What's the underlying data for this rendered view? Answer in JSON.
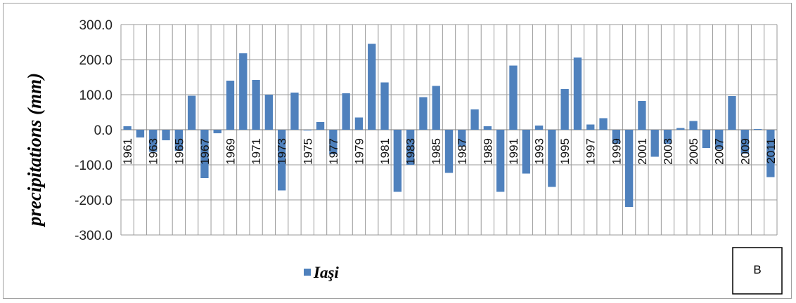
{
  "chart_data": {
    "type": "bar",
    "ylabel": "precipitations (mm)",
    "ylim": [
      -300,
      300
    ],
    "y_ticks": [
      "300.0",
      "200.0",
      "100.0",
      "0.0",
      "-100.0",
      "-200.0",
      "-300.0"
    ],
    "grid": true,
    "legend_position": "bottom-left",
    "bar_color": "#4f81bd",
    "panel_label": "B",
    "categories": [
      "1961",
      "1962",
      "1963",
      "1964",
      "1965",
      "1966",
      "1967",
      "1968",
      "1969",
      "1970",
      "1971",
      "1972",
      "1973",
      "1974",
      "1975",
      "1976",
      "1977",
      "1978",
      "1979",
      "1980",
      "1981",
      "1982",
      "1983",
      "1984",
      "1985",
      "1986",
      "1987",
      "1988",
      "1989",
      "1990",
      "1991",
      "1992",
      "1993",
      "1994",
      "1995",
      "1996",
      "1997",
      "1998",
      "1999",
      "2000",
      "2001",
      "2002",
      "2003",
      "2004",
      "2005",
      "2006",
      "2007",
      "2008",
      "2009",
      "2010",
      "2011"
    ],
    "x_tick_labels": [
      "1961",
      "",
      "1963",
      "",
      "1965",
      "",
      "1967",
      "",
      "1969",
      "",
      "1971",
      "",
      "1973",
      "",
      "1975",
      "",
      "1977",
      "",
      "1979",
      "",
      "1981",
      "",
      "1983",
      "",
      "1985",
      "",
      "1987",
      "",
      "1989",
      "",
      "1991",
      "",
      "1993",
      "",
      "1995",
      "",
      "1997",
      "",
      "1999",
      "",
      "2001",
      "",
      "2003",
      "",
      "2005",
      "",
      "2007",
      "",
      "2009",
      "",
      "2011"
    ],
    "series": [
      {
        "name": "Iaşi",
        "values": [
          10,
          -22,
          -63,
          -30,
          -60,
          97,
          -138,
          -10,
          140,
          218,
          142,
          100,
          -173,
          106,
          -2,
          22,
          -70,
          104,
          35,
          245,
          135,
          -177,
          -100,
          93,
          125,
          -123,
          -48,
          58,
          10,
          -177,
          183,
          -125,
          12,
          -163,
          116,
          206,
          15,
          33,
          -40,
          -220,
          82,
          -77,
          -40,
          5,
          25,
          -52,
          -55,
          96,
          -68,
          2,
          -135
        ]
      }
    ]
  }
}
